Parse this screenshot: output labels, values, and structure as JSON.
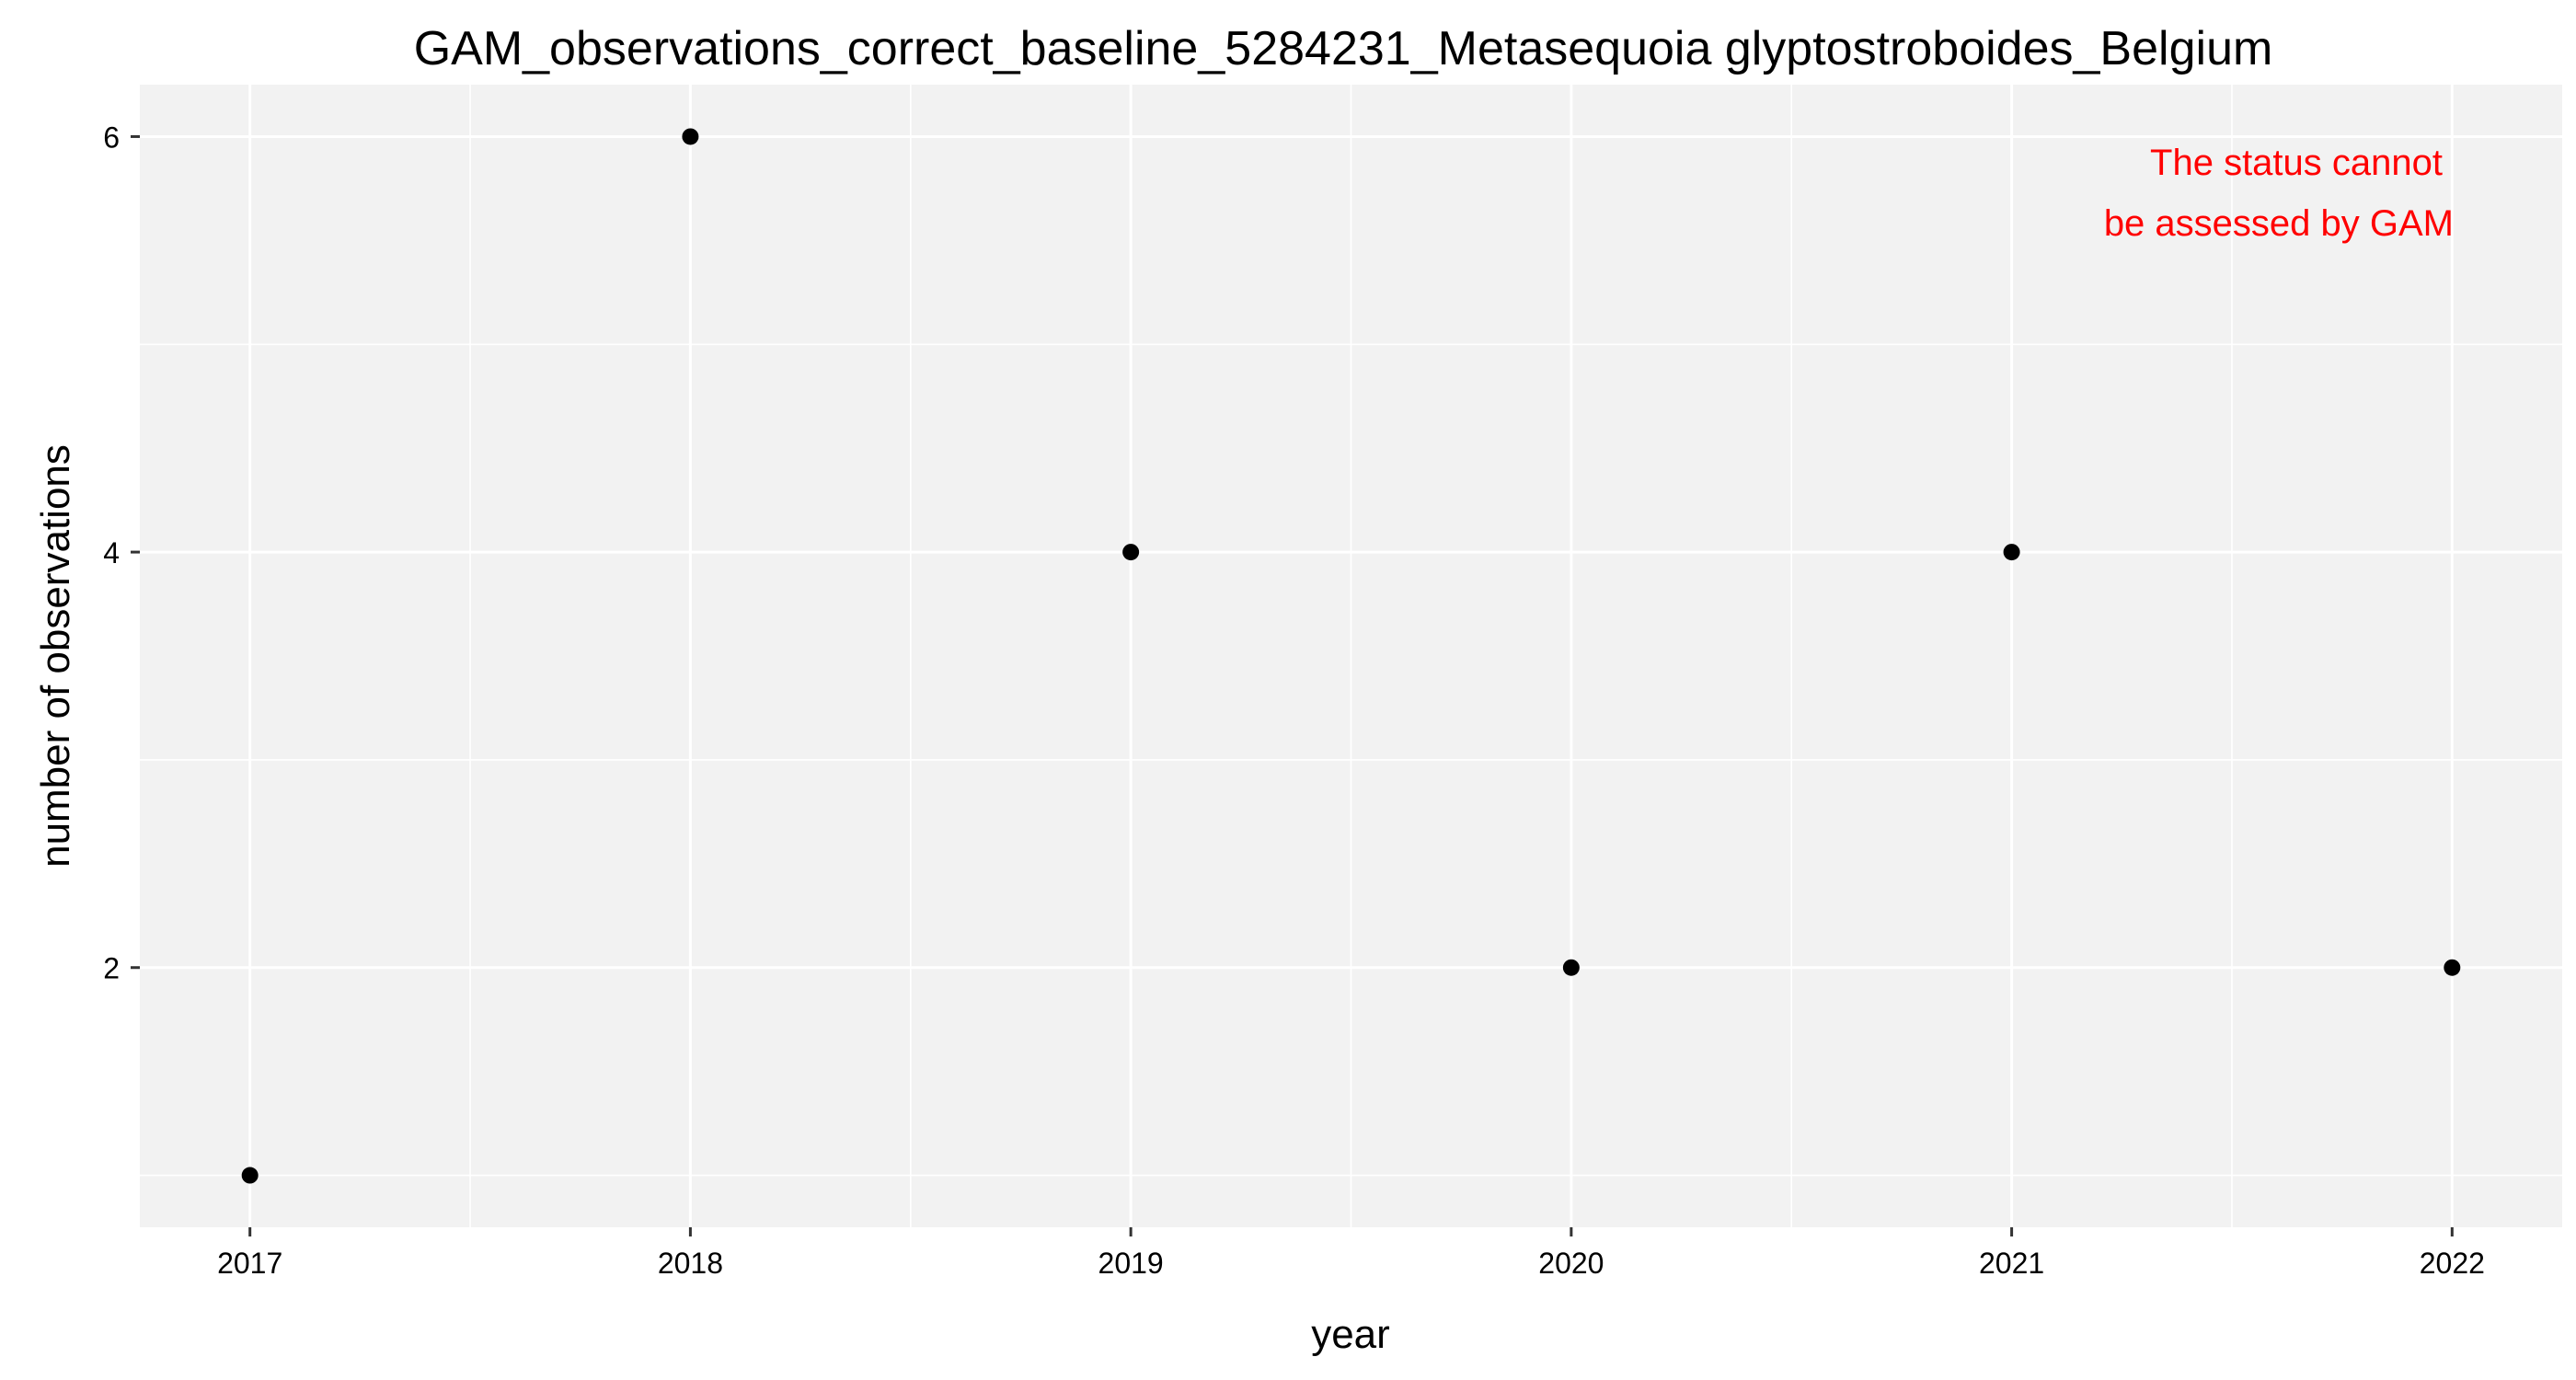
{
  "chart_data": {
    "type": "scatter",
    "title": "GAM_observations_correct_baseline_5284231_Metasequoia glyptostroboides_Belgium",
    "xlabel": "year",
    "ylabel": "number of observations",
    "x": [
      2017,
      2018,
      2019,
      2020,
      2021,
      2022
    ],
    "y": [
      1,
      6,
      4,
      2,
      4,
      2
    ],
    "xlim": [
      2016.75,
      2022.25
    ],
    "ylim": [
      0.75,
      6.25
    ],
    "x_ticks": [
      2017,
      2018,
      2019,
      2020,
      2021,
      2022
    ],
    "x_tick_labels": [
      "2017",
      "2018",
      "2019",
      "2020",
      "2021",
      "2022"
    ],
    "y_ticks": [
      2,
      4,
      6
    ],
    "y_tick_labels": [
      "2",
      "4",
      "6"
    ],
    "x_minor_gridlines": [
      2017.5,
      2018.5,
      2019.5,
      2020.5,
      2021.5
    ],
    "y_minor_gridlines": [
      1,
      3,
      5
    ],
    "grid": true,
    "legend": "none",
    "annotation": {
      "lines": [
        "The status cannot",
        "be assessed by GAM"
      ],
      "color": "#ff0000",
      "position": "top-right"
    },
    "colors": {
      "panel_background": "#f2f2f2",
      "grid_line": "#ffffff",
      "point": "#000000",
      "annotation": "#ff0000"
    }
  }
}
